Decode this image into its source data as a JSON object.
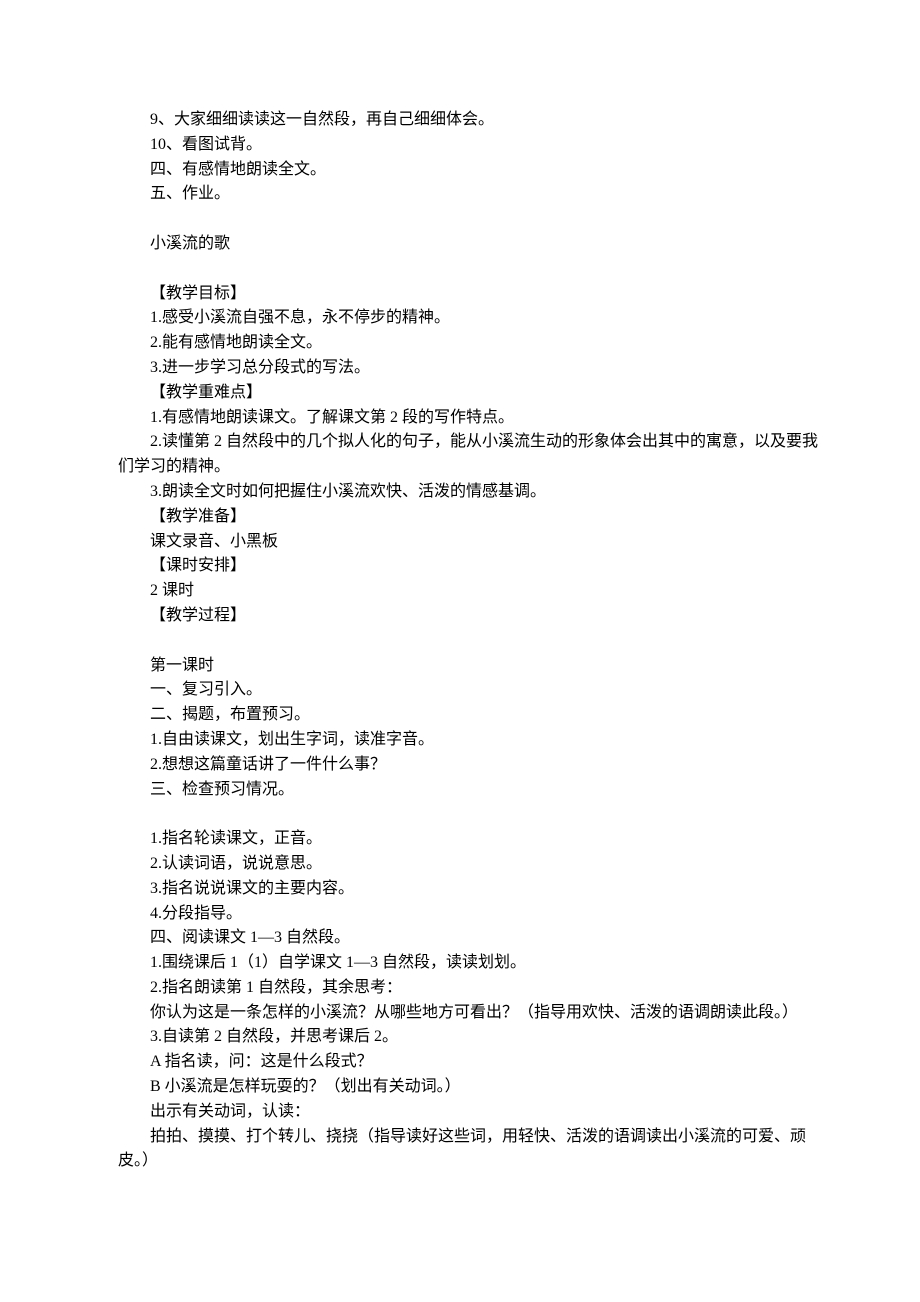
{
  "lines": [
    {
      "text": "9、大家细细读读这一自然段，再自己细细体会。",
      "indent": true
    },
    {
      "text": "10、看图试背。",
      "indent": true
    },
    {
      "text": "四、有感情地朗读全文。",
      "indent": true
    },
    {
      "text": "五、作业。",
      "indent": true
    },
    {
      "blank": true
    },
    {
      "text": "小溪流的歌",
      "indent": true
    },
    {
      "blank": true
    },
    {
      "text": "【教学目标】",
      "indent": true
    },
    {
      "text": "1.感受小溪流自强不息，永不停步的精神。",
      "indent": true
    },
    {
      "text": "2.能有感情地朗读全文。",
      "indent": true
    },
    {
      "text": "3.进一步学习总分段式的写法。",
      "indent": true
    },
    {
      "text": "【教学重难点】",
      "indent": true
    },
    {
      "text": "1.有感情地朗读课文。了解课文第 2 段的写作特点。",
      "indent": true
    },
    {
      "text": "2.读懂第 2 自然段中的几个拟人化的句子，能从小溪流生动的形象体会出其中的寓意，以及要我们学习的精神。",
      "indent": true,
      "partialContinue": "noindent"
    },
    {
      "text": "3.朗读全文时如何把握住小溪流欢快、活泼的情感基调。",
      "indent": true
    },
    {
      "text": "【教学准备】",
      "indent": true
    },
    {
      "text": "课文录音、小黑板",
      "indent": true
    },
    {
      "text": "【课时安排】",
      "indent": true
    },
    {
      "text": "2 课时",
      "indent": true
    },
    {
      "text": "【教学过程】",
      "indent": true
    },
    {
      "blank": true
    },
    {
      "text": "第一课时",
      "indent": true
    },
    {
      "text": "一、复习引入。",
      "indent": true
    },
    {
      "text": "二、揭题，布置预习。",
      "indent": true
    },
    {
      "text": "1.自由读课文，划出生字词，读准字音。",
      "indent": true
    },
    {
      "text": "2.想想这篇童话讲了一件什么事？",
      "indent": true
    },
    {
      "text": "三、检查预习情况。",
      "indent": true
    },
    {
      "blank": true
    },
    {
      "text": "1.指名轮读课文，正音。",
      "indent": true
    },
    {
      "text": "2.认读词语，说说意思。",
      "indent": true
    },
    {
      "text": "3.指名说说课文的主要内容。",
      "indent": true
    },
    {
      "text": "4.分段指导。",
      "indent": true
    },
    {
      "text": "四、阅读课文 1—3 自然段。",
      "indent": true
    },
    {
      "text": "1.围绕课后 1（1）自学课文 1—3 自然段，读读划划。",
      "indent": true
    },
    {
      "text": "2.指名朗读第 1 自然段，其余思考：",
      "indent": true
    },
    {
      "text": "你认为这是一条怎样的小溪流？从哪些地方可看出？（指导用欢快、活泼的语调朗读此段。）",
      "indent": true,
      "partialContinue": "noindent"
    },
    {
      "text": "3.自读第 2 自然段，并思考课后 2。",
      "indent": true
    },
    {
      "text": "A 指名读，问：这是什么段式？",
      "indent": true
    },
    {
      "text": "B 小溪流是怎样玩耍的？（划出有关动词。）",
      "indent": true
    },
    {
      "text": "出示有关动词，认读：",
      "indent": true
    },
    {
      "text": "拍拍、摸摸、打个转儿、挠挠（指导读好这些词，用轻快、活泼的语调读出小溪流的可爱、顽皮。）",
      "indent": true,
      "partialContinue": "noindent"
    }
  ],
  "colors": {
    "background": "#ffffff",
    "text": "#000000"
  },
  "typography": {
    "fontFamily": "SimSun",
    "fontSizePx": 16,
    "lineHeight": 1.55,
    "indentEm": 2
  }
}
